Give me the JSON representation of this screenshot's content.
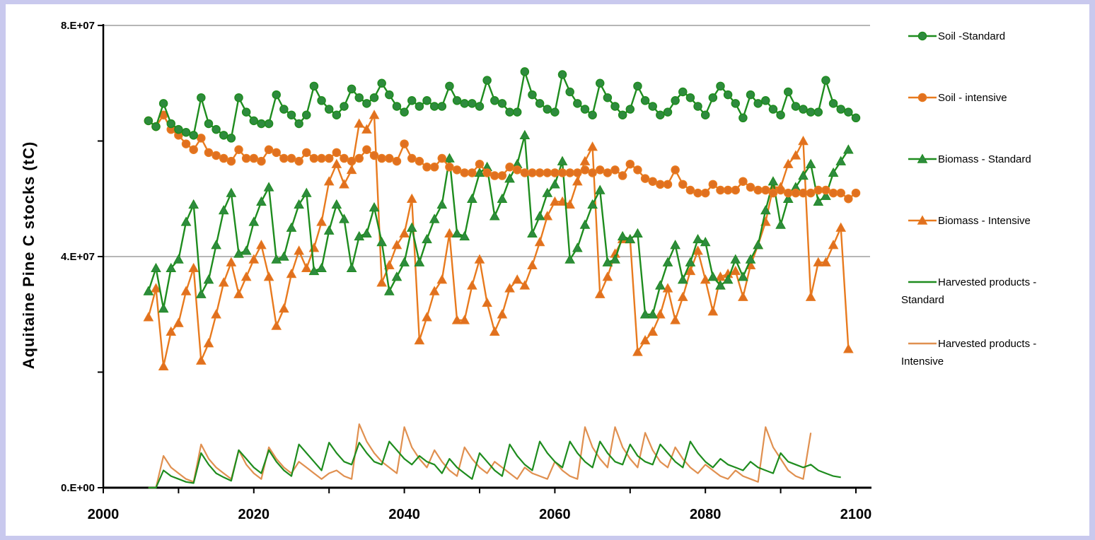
{
  "chart_data": {
    "type": "line",
    "title": "",
    "xlabel": "",
    "ylabel": "Aquitaine Pine C stocks (tC)",
    "xlim": [
      2000,
      2100
    ],
    "ylim": [
      0,
      80000000
    ],
    "x_ticks": [
      "2000",
      "2020",
      "2040",
      "2060",
      "2080",
      "2100"
    ],
    "y_ticks": [
      {
        "value": 0,
        "label": "0.E+00"
      },
      {
        "value": 40000000,
        "label": "4.E+07"
      },
      {
        "value": 80000000,
        "label": "8.E+07"
      }
    ],
    "y_minor_ticks": [
      20000000,
      60000000
    ],
    "grid": "horizontal major",
    "legend_position": "right",
    "x_start": 2006,
    "x_step": 1,
    "series": [
      {
        "name": "Soil -Standard",
        "color": "#1e8c1e",
        "marker": "circle",
        "marker_face": "#2e8b3e",
        "values": [
          63500000,
          62500000,
          66500000,
          63000000,
          62000000,
          61500000,
          61000000,
          67500000,
          63000000,
          62000000,
          61000000,
          60500000,
          67500000,
          65000000,
          63500000,
          63000000,
          63000000,
          68000000,
          65500000,
          64500000,
          63000000,
          64500000,
          69500000,
          67000000,
          65500000,
          64500000,
          66000000,
          69000000,
          67500000,
          66500000,
          67500000,
          70000000,
          68000000,
          66000000,
          65000000,
          67000000,
          66000000,
          67000000,
          66000000,
          66000000,
          69500000,
          67000000,
          66500000,
          66500000,
          66000000,
          70500000,
          67000000,
          66500000,
          65000000,
          65000000,
          72000000,
          68000000,
          66500000,
          65500000,
          65000000,
          71500000,
          68500000,
          66500000,
          65500000,
          64500000,
          70000000,
          67500000,
          66000000,
          64500000,
          65500000,
          69500000,
          67000000,
          66000000,
          64500000,
          65000000,
          67000000,
          68500000,
          67500000,
          66000000,
          64500000,
          67500000,
          69500000,
          68000000,
          66500000,
          64000000,
          68000000,
          66500000,
          67000000,
          65500000,
          64500000,
          68500000,
          66000000,
          65500000,
          65000000,
          65000000,
          70500000,
          66500000,
          65500000,
          65000000,
          64000000
        ]
      },
      {
        "name": "Soil - intensive",
        "color": "#e87a1e",
        "marker": "circle",
        "marker_face": "#e07020",
        "values": [
          63500000,
          62500000,
          64500000,
          62000000,
          61000000,
          59500000,
          58500000,
          60500000,
          58000000,
          57500000,
          57000000,
          56500000,
          58500000,
          57000000,
          57000000,
          56500000,
          58500000,
          58000000,
          57000000,
          57000000,
          56500000,
          58000000,
          57000000,
          57000000,
          57000000,
          58000000,
          57000000,
          56500000,
          57000000,
          58500000,
          57500000,
          57000000,
          57000000,
          56500000,
          59500000,
          57000000,
          56500000,
          55500000,
          55500000,
          57000000,
          55500000,
          55000000,
          54500000,
          54500000,
          56000000,
          54500000,
          54000000,
          54000000,
          55500000,
          55000000,
          54500000,
          54500000,
          54500000,
          54500000,
          54500000,
          54500000,
          54500000,
          54500000,
          55000000,
          54500000,
          55000000,
          54500000,
          55000000,
          54000000,
          56000000,
          55000000,
          53500000,
          53000000,
          52500000,
          52500000,
          55000000,
          52500000,
          51500000,
          51000000,
          51000000,
          52500000,
          51500000,
          51500000,
          51500000,
          53000000,
          52000000,
          51500000,
          51500000,
          51000000,
          51500000,
          51000000,
          51000000,
          51000000,
          51000000,
          51500000,
          51500000,
          51000000,
          51000000,
          50000000,
          51000000
        ]
      },
      {
        "name": "Biomass - Standard",
        "color": "#1e8c1e",
        "marker": "triangle",
        "marker_face": "#2e8b3e",
        "values": [
          34000000,
          38000000,
          31000000,
          38000000,
          39500000,
          46000000,
          49000000,
          33500000,
          36000000,
          42000000,
          48000000,
          51000000,
          40500000,
          41000000,
          46000000,
          49500000,
          52000000,
          39500000,
          40000000,
          45000000,
          49000000,
          51000000,
          37500000,
          38000000,
          44500000,
          49000000,
          46500000,
          38000000,
          43500000,
          44000000,
          48500000,
          42500000,
          34000000,
          36500000,
          39000000,
          45000000,
          39000000,
          43000000,
          46500000,
          49000000,
          57000000,
          44000000,
          43500000,
          50000000,
          54500000,
          55500000,
          47000000,
          50000000,
          53500000,
          56000000,
          61000000,
          44000000,
          47000000,
          51000000,
          52500000,
          56500000,
          39500000,
          41500000,
          45500000,
          49000000,
          51500000,
          39000000,
          39500000,
          43500000,
          43000000,
          44000000,
          30000000,
          30000000,
          35000000,
          39000000,
          42000000,
          36000000,
          39000000,
          43000000,
          42500000,
          36500000,
          35000000,
          36000000,
          39500000,
          36500000,
          39500000,
          42000000,
          48000000,
          53000000,
          45500000,
          50000000,
          52000000,
          54000000,
          56000000,
          49500000,
          50500000,
          54500000,
          56500000,
          58500000
        ]
      },
      {
        "name": "Biomass - Intensive",
        "color": "#e87a1e",
        "marker": "triangle",
        "marker_face": "#e07020",
        "values": [
          29500000,
          34500000,
          21000000,
          27000000,
          28500000,
          34000000,
          38000000,
          22000000,
          25000000,
          30000000,
          35500000,
          39000000,
          33500000,
          36500000,
          39500000,
          42000000,
          36500000,
          28000000,
          31000000,
          37000000,
          41000000,
          38000000,
          41500000,
          46000000,
          53000000,
          56000000,
          52500000,
          55000000,
          63000000,
          62000000,
          64500000,
          35500000,
          38500000,
          42000000,
          44000000,
          50000000,
          25500000,
          29500000,
          34000000,
          36000000,
          44000000,
          29000000,
          29000000,
          35000000,
          39500000,
          32000000,
          27000000,
          30000000,
          34500000,
          36000000,
          35000000,
          38500000,
          42500000,
          47000000,
          49500000,
          49500000,
          49000000,
          53000000,
          56500000,
          59000000,
          33500000,
          36500000,
          40500000,
          43000000,
          43000000,
          23500000,
          25500000,
          27000000,
          30000000,
          34500000,
          29000000,
          33000000,
          37500000,
          41000000,
          36000000,
          30500000,
          36500000,
          37000000,
          37500000,
          33000000,
          38500000,
          42000000,
          46000000,
          52000000,
          52000000,
          56000000,
          57500000,
          60000000,
          33000000,
          39000000,
          39000000,
          42000000,
          45000000,
          24000000
        ]
      },
      {
        "name": "Harvested products - Standard",
        "color": "#1e8c1e",
        "marker": "none",
        "values": [
          0,
          0,
          3000000,
          2000000,
          1500000,
          1000000,
          800000,
          6000000,
          4000000,
          2500000,
          1800000,
          1200000,
          6500000,
          5000000,
          3500000,
          2500000,
          6500000,
          4500000,
          3000000,
          2000000,
          7500000,
          6000000,
          4500000,
          3000000,
          7800000,
          6000000,
          4500000,
          4000000,
          7800000,
          6000000,
          4500000,
          4000000,
          8000000,
          6500000,
          5000000,
          4000000,
          5500000,
          4500000,
          4000000,
          2500000,
          5000000,
          3500000,
          2500000,
          1500000,
          6000000,
          4500000,
          3000000,
          2000000,
          7500000,
          5500000,
          4000000,
          3000000,
          8000000,
          6000000,
          4500000,
          3500000,
          8000000,
          6000000,
          4500000,
          3500000,
          8000000,
          6000000,
          4500000,
          4000000,
          7500000,
          5500000,
          4500000,
          4000000,
          7500000,
          6000000,
          4500000,
          3500000,
          8000000,
          6000000,
          4500000,
          3500000,
          5000000,
          4000000,
          3500000,
          3000000,
          4500000,
          3500000,
          3000000,
          2500000,
          6000000,
          4500000,
          4000000,
          3500000,
          4000000,
          3000000,
          2500000,
          2000000,
          1800000
        ]
      },
      {
        "name": "Harvested products - Intensive",
        "color": "#e09050",
        "marker": "none",
        "values": [
          0,
          0,
          5500000,
          3500000,
          2500000,
          1500000,
          1000000,
          7500000,
          5000000,
          3500000,
          2500000,
          1500000,
          6500000,
          4000000,
          2500000,
          1500000,
          7000000,
          5000000,
          3500000,
          2500000,
          4500000,
          3500000,
          2500000,
          1500000,
          2500000,
          3000000,
          2000000,
          1500000,
          11000000,
          8000000,
          6000000,
          4500000,
          3500000,
          2500000,
          10500000,
          7000000,
          5000000,
          3500000,
          6500000,
          4500000,
          3000000,
          2000000,
          7000000,
          5000000,
          3500000,
          2500000,
          4500000,
          3500000,
          2500000,
          1500000,
          3500000,
          2500000,
          2000000,
          1500000,
          4500000,
          3000000,
          2000000,
          1500000,
          10500000,
          7000000,
          5000000,
          3500000,
          10500000,
          7000000,
          5000000,
          3500000,
          9500000,
          6500000,
          4500000,
          3500000,
          7000000,
          5000000,
          3500000,
          2500000,
          4000000,
          3000000,
          2000000,
          1500000,
          3000000,
          2000000,
          1500000,
          1000000,
          10500000,
          7000000,
          5000000,
          3000000,
          2000000,
          1500000,
          9500000
        ]
      }
    ]
  }
}
